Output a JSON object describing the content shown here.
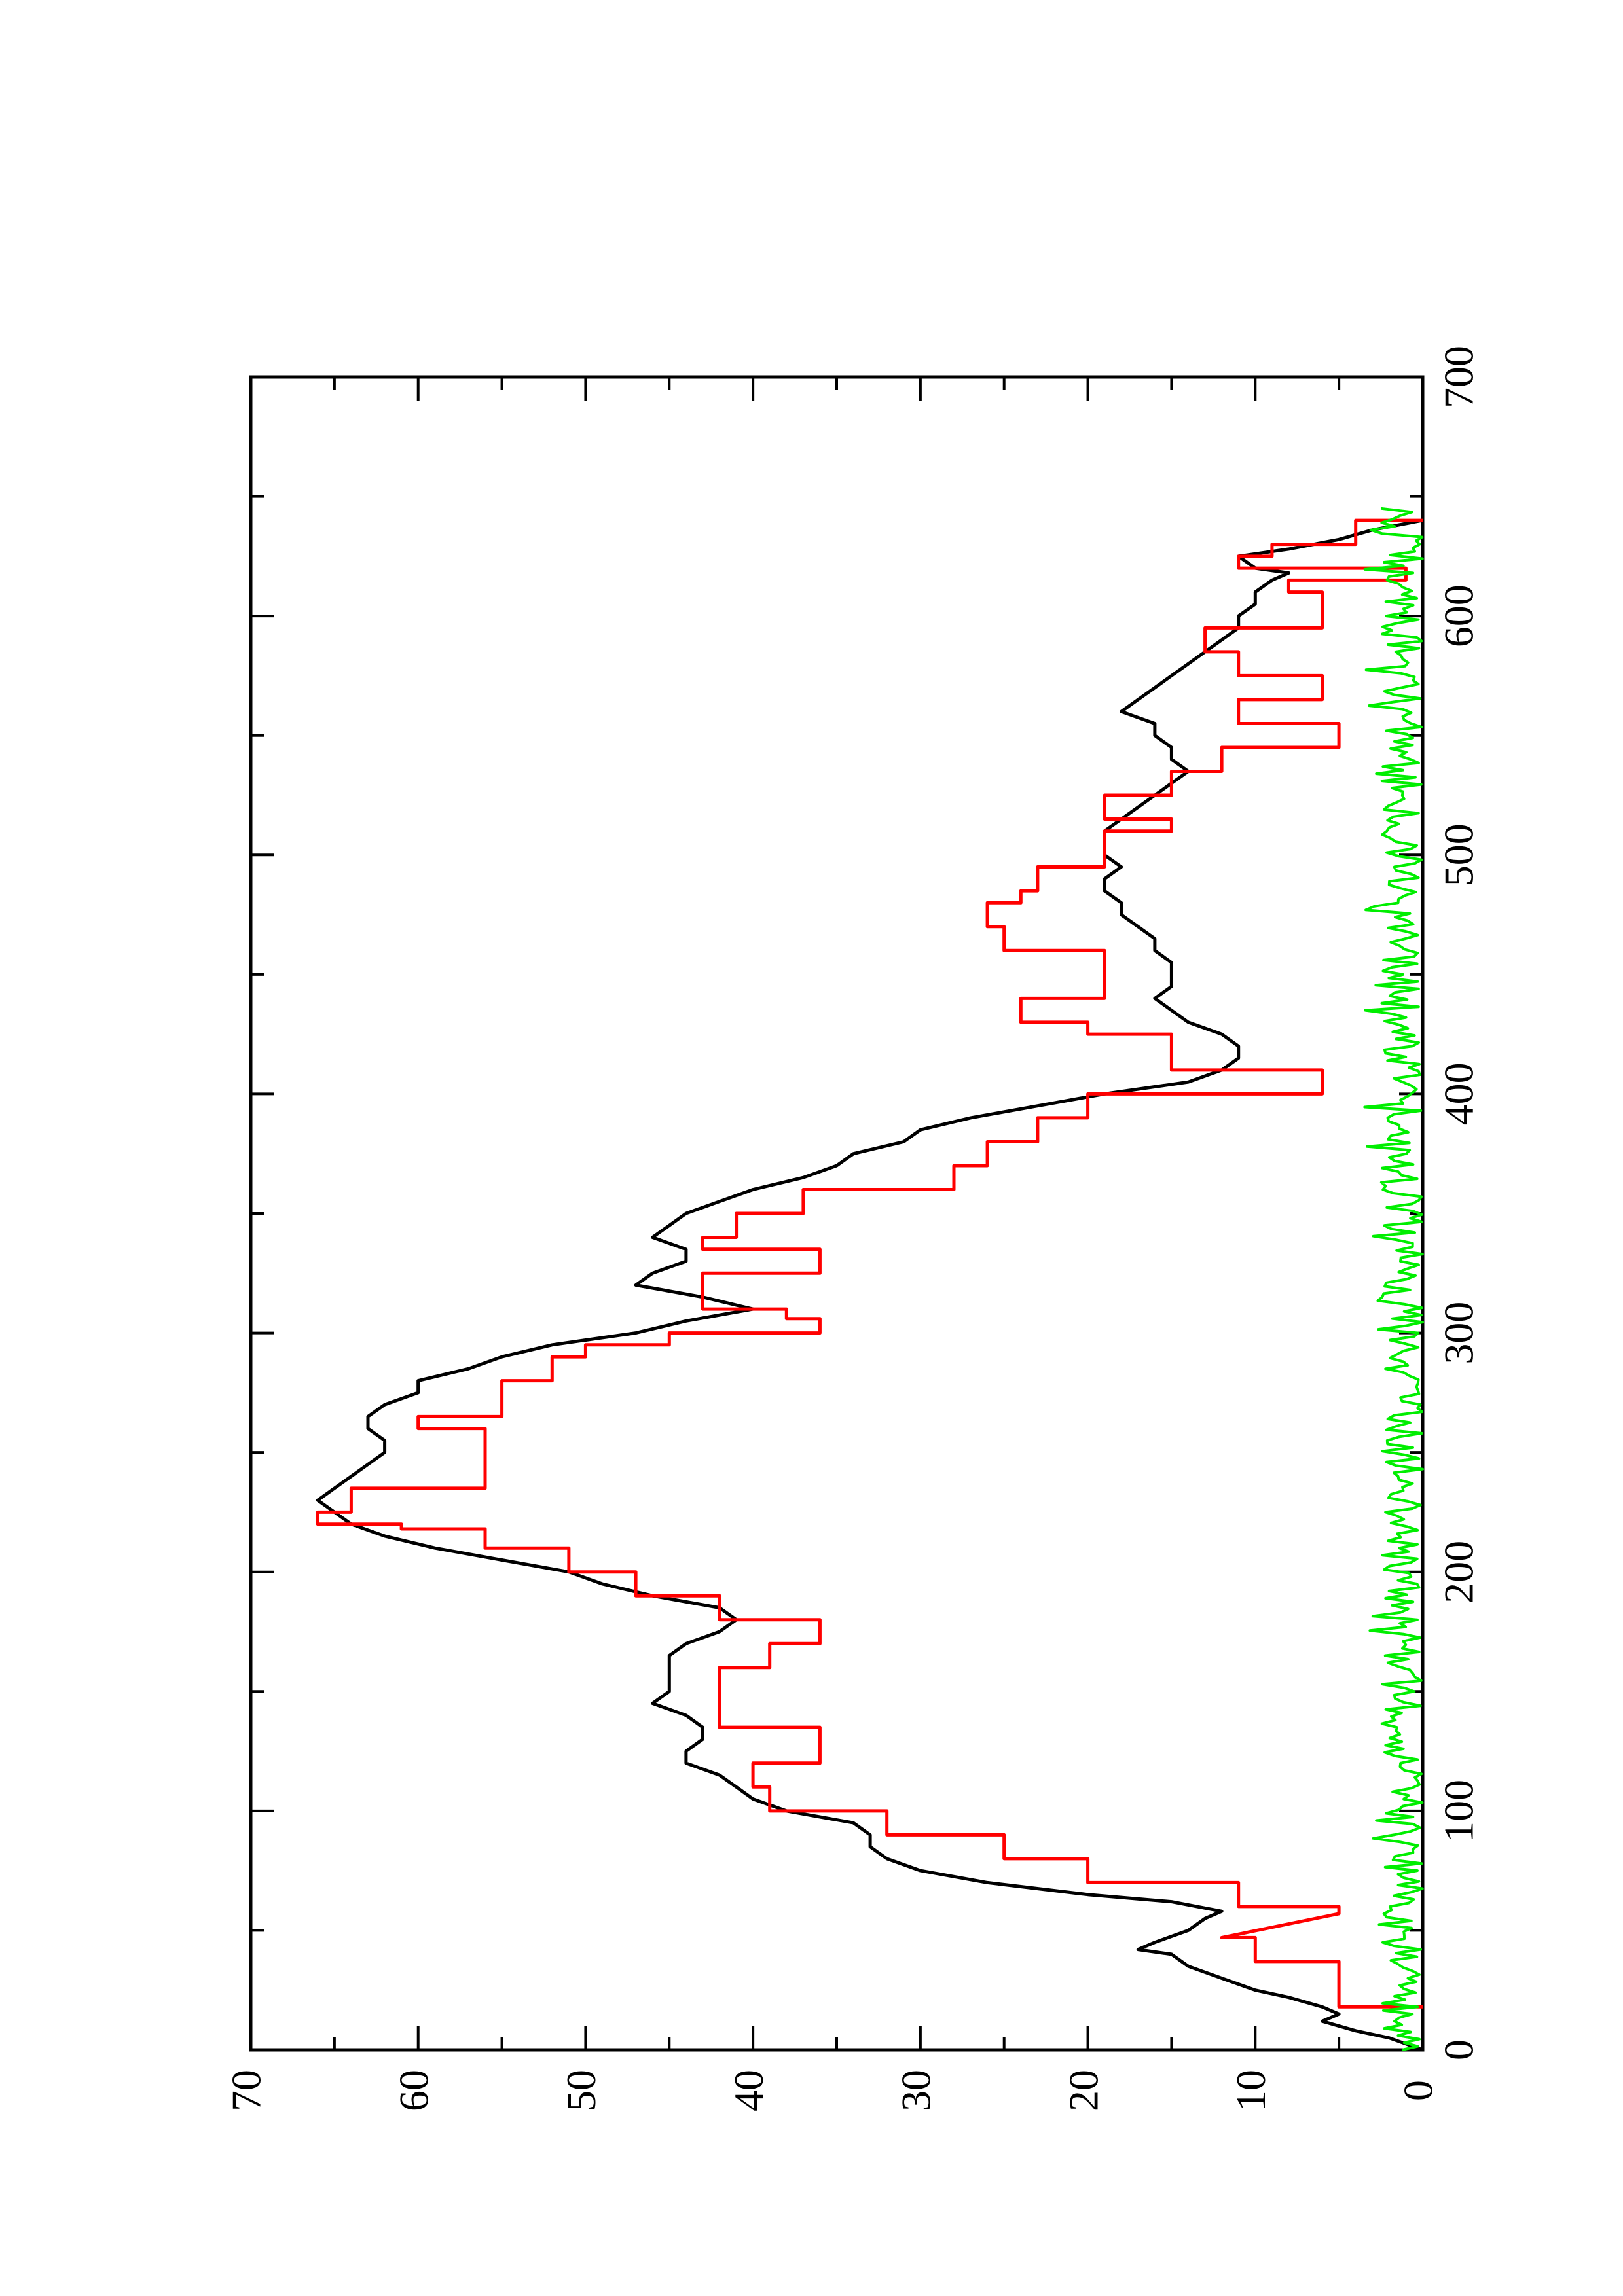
{
  "chart_data": {
    "type": "line",
    "orientation": "rotated 90 degrees counter-clockwise",
    "title": "",
    "xlabel": "",
    "ylabel": "",
    "xlim": [
      0,
      700
    ],
    "ylim": [
      0,
      70
    ],
    "x_ticks": [
      0,
      100,
      200,
      300,
      400,
      500,
      600,
      700
    ],
    "x_ticks_labels": [
      "0",
      "100",
      "200",
      "300",
      "400",
      "500",
      "600",
      "700"
    ],
    "y_ticks": [
      0,
      10,
      20,
      30,
      40,
      50,
      60,
      70
    ],
    "y_ticks_labels": [
      "0",
      "10",
      "20",
      "30",
      "40",
      "50",
      "60",
      "70"
    ],
    "grid": false,
    "legend": "none",
    "series": [
      {
        "color": "#000000",
        "style": "line",
        "points": [
          [
            0,
            0
          ],
          [
            5,
            2
          ],
          [
            8,
            4
          ],
          [
            12,
            6
          ],
          [
            15,
            5
          ],
          [
            18,
            6
          ],
          [
            22,
            8
          ],
          [
            25,
            10
          ],
          [
            30,
            12
          ],
          [
            35,
            14
          ],
          [
            40,
            15
          ],
          [
            42,
            17
          ],
          [
            45,
            16
          ],
          [
            50,
            14
          ],
          [
            55,
            13
          ],
          [
            58,
            12
          ],
          [
            62,
            15
          ],
          [
            65,
            20
          ],
          [
            70,
            26
          ],
          [
            75,
            30
          ],
          [
            80,
            32
          ],
          [
            85,
            33
          ],
          [
            90,
            33
          ],
          [
            95,
            34
          ],
          [
            100,
            38
          ],
          [
            105,
            40
          ],
          [
            110,
            41
          ],
          [
            115,
            42
          ],
          [
            120,
            44
          ],
          [
            125,
            44
          ],
          [
            130,
            43
          ],
          [
            135,
            43
          ],
          [
            140,
            44
          ],
          [
            145,
            46
          ],
          [
            150,
            45
          ],
          [
            155,
            45
          ],
          [
            160,
            45
          ],
          [
            165,
            45
          ],
          [
            170,
            44
          ],
          [
            175,
            42
          ],
          [
            180,
            41
          ],
          [
            185,
            42
          ],
          [
            190,
            46
          ],
          [
            195,
            49
          ],
          [
            200,
            51
          ],
          [
            205,
            55
          ],
          [
            210,
            59
          ],
          [
            215,
            62
          ],
          [
            220,
            64
          ],
          [
            225,
            65
          ],
          [
            230,
            66
          ],
          [
            235,
            65
          ],
          [
            240,
            64
          ],
          [
            245,
            63
          ],
          [
            250,
            62
          ],
          [
            255,
            62
          ],
          [
            260,
            63
          ],
          [
            265,
            63
          ],
          [
            270,
            62
          ],
          [
            275,
            60
          ],
          [
            280,
            60
          ],
          [
            285,
            57
          ],
          [
            290,
            55
          ],
          [
            295,
            52
          ],
          [
            300,
            47
          ],
          [
            305,
            44
          ],
          [
            310,
            40
          ],
          [
            315,
            43
          ],
          [
            320,
            47
          ],
          [
            325,
            46
          ],
          [
            330,
            44
          ],
          [
            335,
            44
          ],
          [
            340,
            46
          ],
          [
            345,
            45
          ],
          [
            350,
            44
          ],
          [
            355,
            42
          ],
          [
            360,
            40
          ],
          [
            365,
            37
          ],
          [
            370,
            35
          ],
          [
            375,
            34
          ],
          [
            380,
            31
          ],
          [
            385,
            30
          ],
          [
            390,
            27
          ],
          [
            395,
            23
          ],
          [
            400,
            19
          ],
          [
            405,
            14
          ],
          [
            410,
            12
          ],
          [
            415,
            11
          ],
          [
            420,
            11
          ],
          [
            425,
            12
          ],
          [
            430,
            14
          ],
          [
            435,
            15
          ],
          [
            440,
            16
          ],
          [
            445,
            15
          ],
          [
            450,
            15
          ],
          [
            455,
            15
          ],
          [
            460,
            16
          ],
          [
            465,
            16
          ],
          [
            470,
            17
          ],
          [
            475,
            18
          ],
          [
            480,
            18
          ],
          [
            485,
            19
          ],
          [
            490,
            19
          ],
          [
            495,
            18
          ],
          [
            500,
            19
          ],
          [
            505,
            19
          ],
          [
            510,
            19
          ],
          [
            515,
            18
          ],
          [
            520,
            17
          ],
          [
            525,
            16
          ],
          [
            530,
            15
          ],
          [
            535,
            14
          ],
          [
            540,
            15
          ],
          [
            545,
            15
          ],
          [
            550,
            16
          ],
          [
            555,
            16
          ],
          [
            560,
            18
          ],
          [
            565,
            17
          ],
          [
            570,
            16
          ],
          [
            575,
            15
          ],
          [
            580,
            14
          ],
          [
            585,
            13
          ],
          [
            590,
            12
          ],
          [
            595,
            11
          ],
          [
            600,
            11
          ],
          [
            605,
            10
          ],
          [
            610,
            10
          ],
          [
            615,
            9
          ],
          [
            618,
            8
          ],
          [
            620,
            10
          ],
          [
            625,
            11
          ],
          [
            628,
            8
          ],
          [
            632,
            5
          ],
          [
            636,
            3
          ],
          [
            640,
            0
          ]
        ]
      },
      {
        "color": "#ff0000",
        "style": "step",
        "points": [
          [
            18,
            0
          ],
          [
            18,
            5
          ],
          [
            37,
            5
          ],
          [
            37,
            10
          ],
          [
            47,
            10
          ],
          [
            47,
            12
          ],
          [
            57,
            5
          ],
          [
            60,
            5
          ],
          [
            60,
            11
          ],
          [
            70,
            11
          ],
          [
            70,
            20
          ],
          [
            80,
            20
          ],
          [
            80,
            25
          ],
          [
            90,
            25
          ],
          [
            90,
            32
          ],
          [
            100,
            32
          ],
          [
            100,
            39
          ],
          [
            110,
            39
          ],
          [
            110,
            40
          ],
          [
            120,
            40
          ],
          [
            120,
            36
          ],
          [
            135,
            36
          ],
          [
            135,
            42
          ],
          [
            145,
            42
          ],
          [
            145,
            42
          ],
          [
            160,
            42
          ],
          [
            160,
            39
          ],
          [
            170,
            39
          ],
          [
            170,
            36
          ],
          [
            180,
            36
          ],
          [
            180,
            42
          ],
          [
            190,
            42
          ],
          [
            190,
            47
          ],
          [
            200,
            47
          ],
          [
            200,
            51
          ],
          [
            210,
            51
          ],
          [
            210,
            56
          ],
          [
            218,
            56
          ],
          [
            218,
            61
          ],
          [
            220,
            61
          ],
          [
            220,
            66
          ],
          [
            225,
            66
          ],
          [
            225,
            64
          ],
          [
            235,
            64
          ],
          [
            235,
            56
          ],
          [
            260,
            56
          ],
          [
            260,
            60
          ],
          [
            265,
            60
          ],
          [
            265,
            55
          ],
          [
            280,
            55
          ],
          [
            280,
            52
          ],
          [
            290,
            52
          ],
          [
            290,
            50
          ],
          [
            295,
            50
          ],
          [
            295,
            45
          ],
          [
            300,
            45
          ],
          [
            300,
            36
          ],
          [
            306,
            36
          ],
          [
            306,
            38
          ],
          [
            310,
            38
          ],
          [
            310,
            43
          ],
          [
            325,
            43
          ],
          [
            325,
            36
          ],
          [
            335,
            36
          ],
          [
            335,
            43
          ],
          [
            340,
            43
          ],
          [
            340,
            41
          ],
          [
            350,
            41
          ],
          [
            350,
            37
          ],
          [
            360,
            37
          ],
          [
            360,
            28
          ],
          [
            370,
            28
          ],
          [
            370,
            26
          ],
          [
            380,
            26
          ],
          [
            380,
            23
          ],
          [
            390,
            23
          ],
          [
            390,
            20
          ],
          [
            400,
            20
          ],
          [
            400,
            6
          ],
          [
            410,
            6
          ],
          [
            410,
            15
          ],
          [
            425,
            15
          ],
          [
            425,
            20
          ],
          [
            430,
            20
          ],
          [
            430,
            24
          ],
          [
            440,
            24
          ],
          [
            440,
            19
          ],
          [
            460,
            19
          ],
          [
            460,
            25
          ],
          [
            470,
            25
          ],
          [
            470,
            26
          ],
          [
            480,
            26
          ],
          [
            480,
            24
          ],
          [
            485,
            24
          ],
          [
            485,
            23
          ],
          [
            495,
            23
          ],
          [
            495,
            19
          ],
          [
            505,
            19
          ],
          [
            505,
            19
          ],
          [
            510,
            19
          ],
          [
            510,
            15
          ],
          [
            515,
            15
          ],
          [
            515,
            19
          ],
          [
            525,
            19
          ],
          [
            525,
            15
          ],
          [
            535,
            15
          ],
          [
            535,
            12
          ],
          [
            545,
            12
          ],
          [
            545,
            5
          ],
          [
            555,
            5
          ],
          [
            555,
            11
          ],
          [
            565,
            11
          ],
          [
            565,
            6
          ],
          [
            575,
            6
          ],
          [
            575,
            11
          ],
          [
            585,
            11
          ],
          [
            585,
            13
          ],
          [
            595,
            13
          ],
          [
            595,
            6
          ],
          [
            610,
            6
          ],
          [
            610,
            8
          ],
          [
            615,
            8
          ],
          [
            615,
            1
          ],
          [
            620,
            1
          ],
          [
            620,
            11
          ],
          [
            625,
            11
          ],
          [
            625,
            9
          ],
          [
            630,
            9
          ],
          [
            630,
            4
          ],
          [
            640,
            4
          ],
          [
            640,
            0
          ]
        ]
      },
      {
        "color": "#00ee00",
        "style": "noisy",
        "amplitude": 2.5,
        "x_range": [
          0,
          645
        ]
      }
    ]
  }
}
